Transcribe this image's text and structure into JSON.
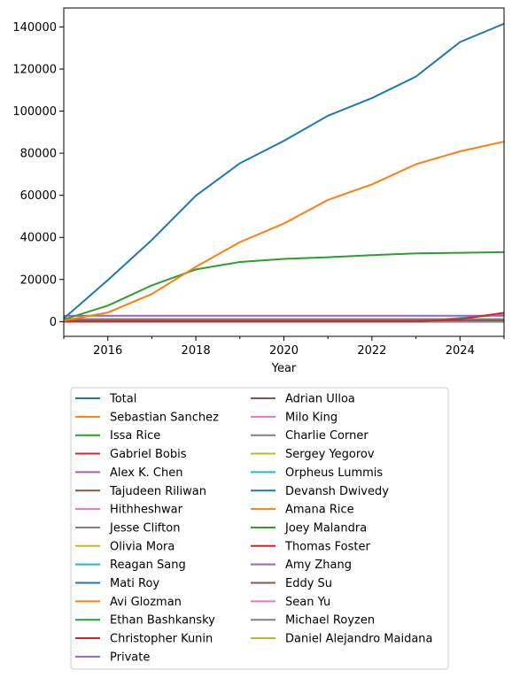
{
  "chart_data": {
    "type": "line",
    "title": "",
    "xlabel": "Year",
    "ylabel": "",
    "xlim": [
      2015,
      2025
    ],
    "ylim": [
      -7000,
      149000
    ],
    "x_ticks": [
      2016,
      2018,
      2020,
      2022,
      2024
    ],
    "y_ticks": [
      0,
      20000,
      40000,
      60000,
      80000,
      100000,
      120000,
      140000
    ],
    "legend_position": "below plot, two columns",
    "x": [
      2015,
      2016,
      2017,
      2018,
      2019,
      2020,
      2021,
      2022,
      2023,
      2024,
      2025
    ],
    "series": [
      {
        "name": "Total",
        "color": "#1f77b4",
        "values": [
          1500,
          19700,
          38800,
          59800,
          75200,
          85900,
          97800,
          106200,
          116400,
          132800,
          141500
        ]
      },
      {
        "name": "Sebastian Sanchez",
        "color": "#ff7f0e",
        "values": [
          500,
          4300,
          13100,
          26000,
          37800,
          46600,
          57800,
          65200,
          74800,
          80900,
          85500
        ]
      },
      {
        "name": "Issa Rice",
        "color": "#2ca02c",
        "values": [
          1000,
          7600,
          17200,
          24800,
          28300,
          29800,
          30600,
          31600,
          32400,
          32700,
          33000
        ]
      },
      {
        "name": "Gabriel Bobis",
        "color": "#d62728",
        "values": [
          0,
          0,
          0,
          0,
          0,
          0,
          0,
          0,
          0,
          1200,
          4200
        ]
      },
      {
        "name": "Alex K. Chen",
        "color": "#9467bd",
        "values": [
          2800,
          2800,
          2800,
          2800,
          2800,
          2800,
          2800,
          2800,
          2800,
          2800,
          2800
        ]
      },
      {
        "name": "Tajudeen Riliwan",
        "color": "#8c564b",
        "values": [
          500,
          500,
          500,
          500,
          500,
          500,
          500,
          500,
          500,
          500,
          500
        ]
      },
      {
        "name": "Hithheshwar",
        "color": "#e377c2",
        "values": [
          400,
          400,
          400,
          400,
          400,
          400,
          400,
          400,
          400,
          400,
          400
        ]
      },
      {
        "name": "Jesse Clifton",
        "color": "#7f7f7f",
        "values": [
          1200,
          1200,
          1200,
          1200,
          1200,
          1200,
          1200,
          1200,
          1200,
          1200,
          1200
        ]
      },
      {
        "name": "Olivia Mora",
        "color": "#bcbd22",
        "values": [
          200,
          200,
          200,
          200,
          200,
          200,
          200,
          200,
          200,
          200,
          200
        ]
      },
      {
        "name": "Reagan Sang",
        "color": "#17becf",
        "values": [
          0,
          0,
          0,
          0,
          0,
          0,
          0,
          0,
          0,
          1800,
          3300
        ]
      },
      {
        "name": "Mati Roy",
        "color": "#1f77b4",
        "values": [
          0,
          0,
          0,
          0,
          0,
          0,
          0,
          0,
          0,
          0,
          0
        ]
      },
      {
        "name": "Avi Glozman",
        "color": "#ff7f0e",
        "values": [
          0,
          0,
          0,
          0,
          0,
          0,
          0,
          0,
          0,
          0,
          0
        ]
      },
      {
        "name": "Ethan Bashkansky",
        "color": "#2ca02c",
        "values": [
          0,
          0,
          0,
          0,
          0,
          0,
          0,
          0,
          0,
          300,
          600
        ]
      },
      {
        "name": "Christopher Kunin",
        "color": "#d62728",
        "values": [
          0,
          0,
          0,
          0,
          0,
          0,
          0,
          0,
          0,
          0,
          0
        ]
      },
      {
        "name": "Private",
        "color": "#9467bd",
        "values": [
          0,
          0,
          0,
          0,
          0,
          0,
          0,
          0,
          0,
          0,
          0
        ]
      },
      {
        "name": "Adrian Ulloa",
        "color": "#8c564b",
        "values": [
          0,
          0,
          0,
          0,
          0,
          0,
          0,
          0,
          0,
          0,
          0
        ]
      },
      {
        "name": "Milo King",
        "color": "#e377c2",
        "values": [
          0,
          0,
          0,
          0,
          0,
          0,
          0,
          0,
          0,
          0,
          0
        ]
      },
      {
        "name": "Charlie Corner",
        "color": "#7f7f7f",
        "values": [
          0,
          0,
          0,
          0,
          0,
          0,
          0,
          0,
          0,
          0,
          0
        ]
      },
      {
        "name": "Sergey Yegorov",
        "color": "#bcbd22",
        "values": [
          0,
          0,
          0,
          0,
          0,
          0,
          0,
          0,
          0,
          0,
          0
        ]
      },
      {
        "name": "Orpheus Lummis",
        "color": "#17becf",
        "values": [
          0,
          0,
          0,
          0,
          0,
          0,
          0,
          0,
          0,
          0,
          0
        ]
      },
      {
        "name": "Devansh Dwivedy",
        "color": "#1f77b4",
        "values": [
          0,
          0,
          0,
          0,
          0,
          0,
          0,
          0,
          0,
          0,
          0
        ]
      },
      {
        "name": "Amana Rice",
        "color": "#ff7f0e",
        "values": [
          0,
          0,
          0,
          0,
          0,
          0,
          0,
          0,
          0,
          0,
          0
        ]
      },
      {
        "name": "Joey Malandra",
        "color": "#2ca02c",
        "values": [
          0,
          0,
          0,
          0,
          0,
          0,
          0,
          0,
          0,
          0,
          0
        ]
      },
      {
        "name": "Thomas Foster",
        "color": "#d62728",
        "values": [
          0,
          0,
          0,
          0,
          0,
          0,
          0,
          0,
          0,
          0,
          0
        ]
      },
      {
        "name": "Amy Zhang",
        "color": "#9467bd",
        "values": [
          0,
          0,
          0,
          0,
          0,
          0,
          0,
          0,
          0,
          0,
          0
        ]
      },
      {
        "name": "Eddy Su",
        "color": "#8c564b",
        "values": [
          0,
          0,
          0,
          0,
          0,
          0,
          0,
          0,
          0,
          0,
          0
        ]
      },
      {
        "name": "Sean Yu",
        "color": "#e377c2",
        "values": [
          0,
          0,
          0,
          0,
          0,
          0,
          0,
          0,
          0,
          0,
          0
        ]
      },
      {
        "name": "Michael Royzen",
        "color": "#7f7f7f",
        "values": [
          0,
          0,
          0,
          0,
          0,
          0,
          0,
          0,
          0,
          0,
          0
        ]
      },
      {
        "name": "Daniel Alejandro Maidana",
        "color": "#bcbd22",
        "values": [
          0,
          0,
          0,
          0,
          0,
          0,
          0,
          0,
          0,
          0,
          0
        ]
      }
    ]
  }
}
